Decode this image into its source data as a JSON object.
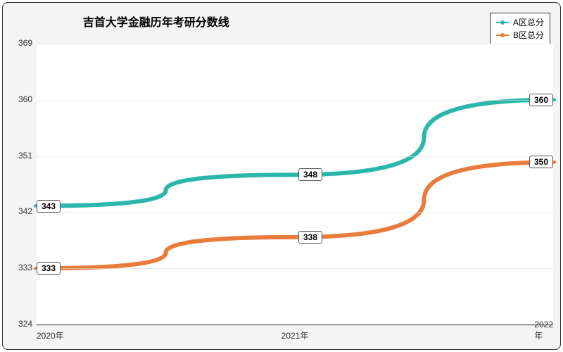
{
  "chart": {
    "type": "line",
    "title": "吉首大学金融历年考研分数线",
    "title_fontsize": 16,
    "background_color": "#f4f4f4",
    "plot_background": "#ffffff",
    "border_color": "#333333",
    "border_radius": 8,
    "grid_color": "#dddddd",
    "axis_color": "#222222",
    "label_fontsize": 12,
    "x": {
      "ticks": [
        "2020年",
        "2021年",
        "2022年"
      ],
      "positions_pct": [
        0,
        50,
        100
      ]
    },
    "y": {
      "min": 324,
      "max": 369,
      "ticks": [
        324,
        333,
        342,
        351,
        360,
        369
      ]
    },
    "series": [
      {
        "name": "A区总分",
        "color": "#2ab7a9",
        "line_width": 2,
        "marker": "circle",
        "marker_size": 6,
        "data": [
          343,
          348,
          360
        ],
        "label_offset_pct": 3
      },
      {
        "name": "B区总分",
        "color": "#e97c3c",
        "line_width": 2,
        "marker": "circle",
        "marker_size": 6,
        "data": [
          333,
          338,
          350
        ],
        "label_offset_pct": 3
      }
    ],
    "legend": {
      "position": "top-right",
      "background": "#ffffff",
      "border_color": "#333333"
    }
  }
}
